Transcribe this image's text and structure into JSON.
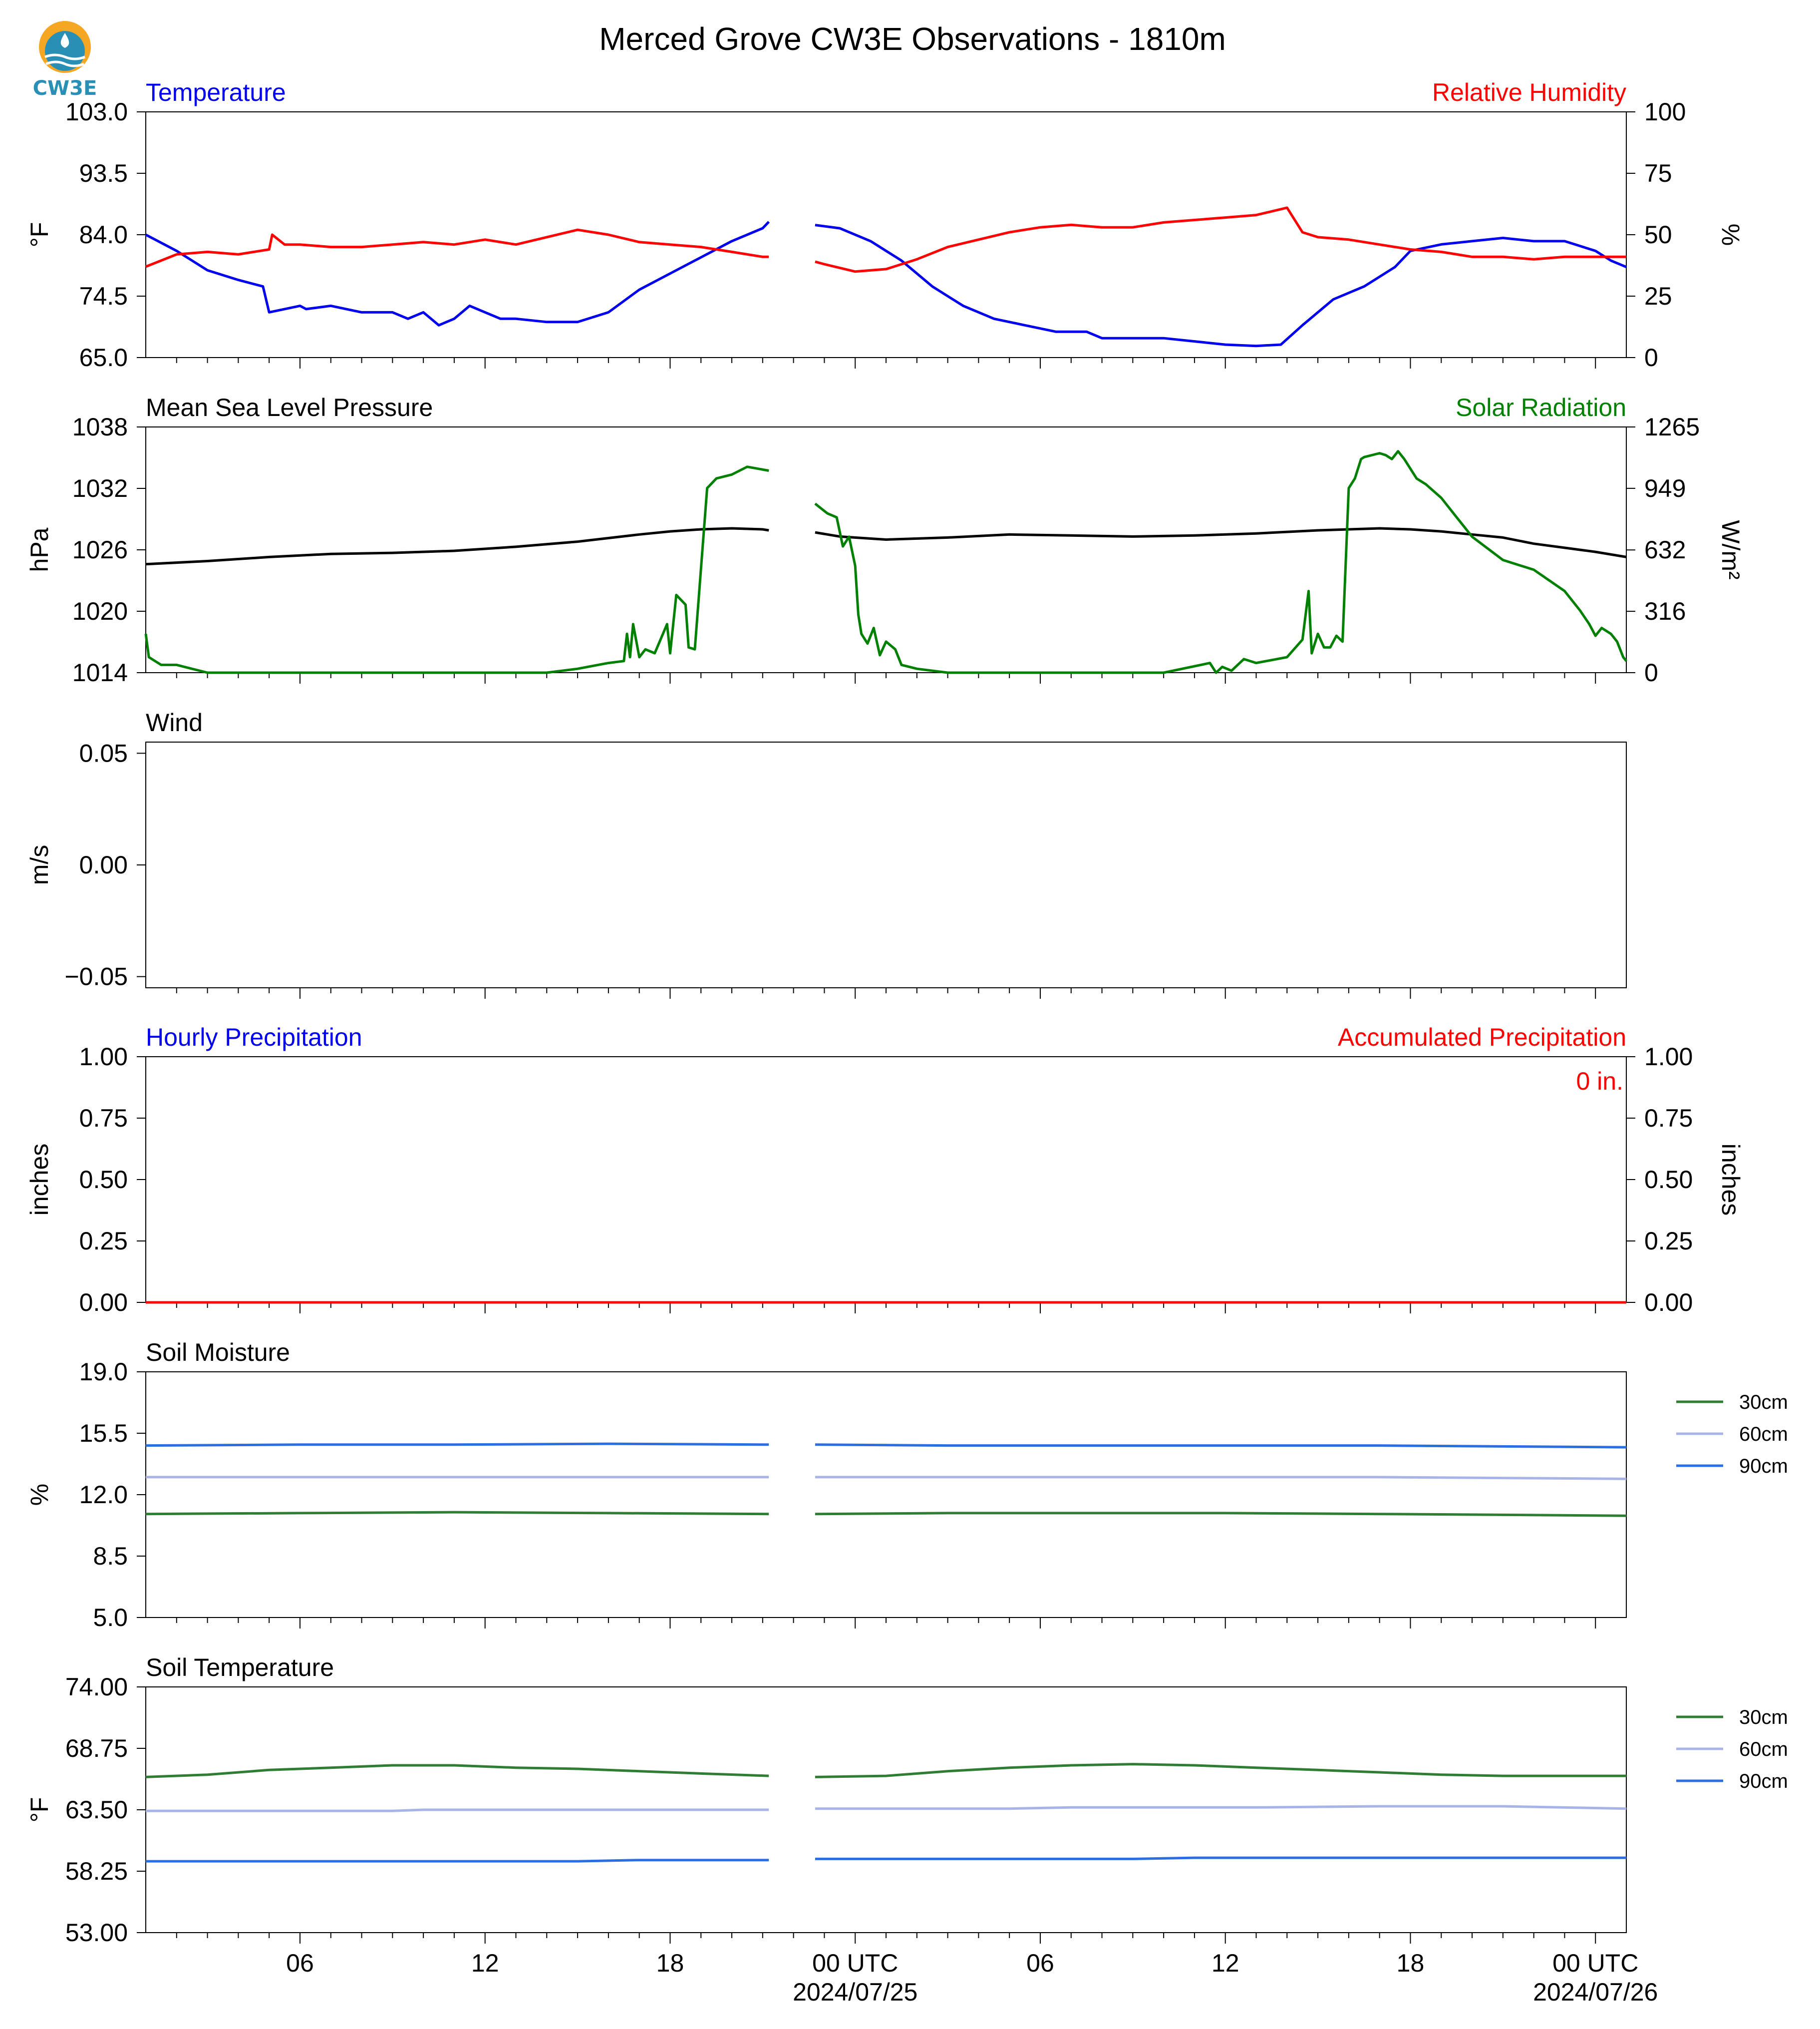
{
  "title": "Merced Grove CW3E Observations - 1810m",
  "logo_text": "CW3E",
  "colors": {
    "temperature": "#0000ee",
    "humidity": "#ff0000",
    "pressure": "#000000",
    "solar": "#008000",
    "soil_30": "#2e7d32",
    "soil_60": "#a8b4e8",
    "soil_90": "#2a6ee0",
    "logo_orange": "#f5a623",
    "logo_blue": "#2a8fb5"
  },
  "x_axis": {
    "start_hour": 0,
    "end_hour": 48,
    "tick_hours": [
      5,
      11,
      17,
      23,
      29,
      35,
      41,
      47
    ],
    "tick_labels": [
      "06",
      "12",
      "18",
      "00 UTC",
      "06",
      "12",
      "18",
      "00 UTC"
    ],
    "date_labels": [
      {
        "hour": 23,
        "text": "2024/07/25"
      },
      {
        "hour": 47,
        "text": "2024/07/26"
      }
    ],
    "minor_tick_step": 1
  },
  "chart_data": [
    {
      "type": "line",
      "title_left": "Temperature",
      "title_right": "Relative Humidity",
      "ylabel": "°F",
      "ylabel_right": "%",
      "ylim": [
        65.0,
        103.0
      ],
      "ylim_right": [
        0,
        100
      ],
      "yticks": [
        "65.0",
        "74.5",
        "84.0",
        "93.5",
        "103.0"
      ],
      "yticks_right": [
        "0",
        "25",
        "50",
        "75",
        "100"
      ],
      "series": [
        {
          "name": "Temperature",
          "axis": "left",
          "color_key": "temperature",
          "x": [
            0,
            1,
            2,
            3,
            3.8,
            4,
            5,
            5.2,
            6,
            7,
            8,
            8.5,
            9,
            9.5,
            10,
            10.5,
            11,
            11.5,
            12,
            13,
            14,
            15,
            16,
            17,
            18,
            19,
            20,
            20.2,
            null,
            21.7,
            22.5,
            23.5,
            24.5,
            25.5,
            26.5,
            27.5,
            28.5,
            29.5,
            30.5,
            31,
            32,
            33,
            34,
            35,
            36,
            36.8,
            37.5,
            38.5,
            39.5,
            40.5,
            41,
            42,
            43,
            44,
            45,
            46,
            47,
            47.5,
            48
          ],
          "y": [
            84.0,
            81.5,
            78.5,
            77,
            76,
            72,
            73,
            72.5,
            73,
            72,
            72,
            71,
            72,
            70,
            71,
            73,
            72,
            71,
            71,
            70.5,
            70.5,
            72,
            75.5,
            78,
            80.5,
            83,
            85,
            86,
            null,
            85.5,
            85,
            83,
            80,
            76,
            73,
            71,
            70,
            69,
            69,
            68,
            68,
            68,
            67.5,
            67,
            66.8,
            67,
            70,
            74,
            76,
            79,
            81.5,
            82.5,
            83,
            83.5,
            83,
            83,
            81.5,
            80,
            79
          ]
        },
        {
          "name": "Relative Humidity",
          "axis": "right",
          "color_key": "humidity",
          "x": [
            0,
            1,
            2,
            3,
            4,
            4.1,
            4.5,
            5,
            6,
            7,
            8,
            9,
            10,
            11,
            12,
            13,
            14,
            15,
            16,
            17,
            18,
            19,
            20,
            20.2,
            null,
            21.7,
            22,
            23,
            24,
            25,
            26,
            27,
            28,
            29,
            30,
            31,
            32,
            33,
            34,
            35,
            36,
            37,
            37.5,
            38,
            39,
            40,
            41,
            42,
            43,
            44,
            45,
            46,
            47,
            48
          ],
          "y": [
            37,
            42,
            43,
            42,
            44,
            50,
            46,
            46,
            45,
            45,
            46,
            47,
            46,
            48,
            46,
            49,
            52,
            50,
            47,
            46,
            45,
            43,
            41,
            41,
            null,
            39,
            38,
            35,
            36,
            40,
            45,
            48,
            51,
            53,
            54,
            53,
            53,
            55,
            56,
            57,
            58,
            61,
            51,
            49,
            48,
            46,
            44,
            43,
            41,
            41,
            40,
            41,
            41,
            41
          ]
        }
      ]
    },
    {
      "type": "line",
      "title_left": "Mean Sea Level Pressure",
      "title_right": "Solar Radiation",
      "ylabel": "hPa",
      "ylabel_right": "W/m²",
      "ylim": [
        1014,
        1038
      ],
      "ylim_right": [
        0,
        1265
      ],
      "yticks": [
        "1014",
        "1020",
        "1026",
        "1032",
        "1038"
      ],
      "yticks_right": [
        "0",
        "316",
        "632",
        "949",
        "1265"
      ],
      "yticks_right_values": [
        0,
        316,
        632,
        949,
        1265
      ],
      "series": [
        {
          "name": "Mean Sea Level Pressure",
          "axis": "left",
          "color_key": "pressure",
          "x": [
            0,
            2,
            4,
            6,
            8,
            10,
            12,
            14,
            16,
            17,
            18,
            19,
            20,
            20.2,
            null,
            21.7,
            22.5,
            24,
            26,
            28,
            30,
            32,
            34,
            36,
            38,
            40,
            41,
            42,
            43,
            44,
            45,
            46,
            47,
            48
          ],
          "y": [
            1024.6,
            1024.9,
            1025.3,
            1025.6,
            1025.7,
            1025.9,
            1026.3,
            1026.8,
            1027.5,
            1027.8,
            1028.0,
            1028.1,
            1028.0,
            1027.9,
            null,
            1027.7,
            1027.3,
            1027.0,
            1027.2,
            1027.5,
            1027.4,
            1027.3,
            1027.4,
            1027.6,
            1027.9,
            1028.1,
            1028.0,
            1027.8,
            1027.5,
            1027.2,
            1026.6,
            1026.2,
            1025.8,
            1025.3
          ]
        },
        {
          "name": "Solar Radiation",
          "axis": "right",
          "color_key": "solar",
          "x": [
            0,
            0.1,
            0.3,
            0.5,
            1,
            2,
            5,
            10,
            13,
            14,
            15,
            15.5,
            15.6,
            15.7,
            15.8,
            16.0,
            16.2,
            16.5,
            16.9,
            17.0,
            17.2,
            17.5,
            17.6,
            17.8,
            18.2,
            18.5,
            19,
            19.5,
            20.2,
            null,
            21.7,
            22.1,
            22.4,
            22.6,
            22.8,
            23.0,
            23.1,
            23.2,
            23.4,
            23.6,
            23.8,
            24.0,
            24.3,
            24.5,
            25,
            26,
            28,
            30,
            33,
            34.5,
            34.7,
            34.9,
            35.2,
            35.6,
            36,
            37,
            37.5,
            37.7,
            37.8,
            38.0,
            38.2,
            38.4,
            38.6,
            38.8,
            39.0,
            39.2,
            39.4,
            39.5,
            40,
            40.2,
            40.4,
            40.6,
            40.8,
            41.0,
            41.2,
            41.5,
            42.0,
            42.5,
            43,
            44,
            45,
            46,
            46.5,
            46.8,
            47.0,
            47.2,
            47.5,
            47.7,
            47.9,
            48
          ],
          "y": [
            200,
            80,
            60,
            40,
            40,
            0,
            0,
            0,
            0,
            20,
            50,
            60,
            200,
            80,
            250,
            80,
            120,
            100,
            250,
            100,
            400,
            350,
            130,
            120,
            950,
            1000,
            1020,
            1060,
            1040,
            null,
            870,
            820,
            800,
            650,
            700,
            550,
            300,
            200,
            150,
            230,
            90,
            160,
            120,
            40,
            20,
            0,
            0,
            0,
            0,
            50,
            0,
            30,
            10,
            70,
            50,
            80,
            170,
            420,
            100,
            200,
            130,
            130,
            190,
            160,
            950,
            1000,
            1100,
            1110,
            1130,
            1120,
            1100,
            1140,
            1100,
            1050,
            1000,
            970,
            900,
            800,
            700,
            580,
            530,
            420,
            320,
            250,
            190,
            230,
            200,
            160,
            80,
            60
          ]
        }
      ]
    },
    {
      "type": "line",
      "title_left": "Wind",
      "ylabel": "m/s",
      "ylim": [
        -0.055,
        0.055
      ],
      "yticks": [
        "0.05",
        "0.00",
        "−0.05"
      ],
      "yticks_values": [
        0.05,
        0.0,
        -0.05
      ],
      "series": []
    },
    {
      "type": "bar",
      "title_left": "Hourly Precipitation",
      "title_right": "Accumulated Precipitation",
      "annotation": "0 in.",
      "ylabel": "inches",
      "ylabel_right": "inches",
      "ylim": [
        0.0,
        1.0
      ],
      "ylim_right": [
        0.0,
        1.0
      ],
      "yticks": [
        "0.00",
        "0.25",
        "0.50",
        "0.75",
        "1.00"
      ],
      "yticks_right": [
        "0.00",
        "0.25",
        "0.50",
        "0.75",
        "1.00"
      ],
      "series": [
        {
          "name": "Accumulated Precipitation",
          "axis": "right",
          "color_key": "humidity",
          "x": [
            0,
            48
          ],
          "y": [
            0.0,
            0.0
          ]
        }
      ]
    },
    {
      "type": "line",
      "title_left": "Soil Moisture",
      "ylabel": "%",
      "ylim": [
        5.0,
        19.0
      ],
      "yticks": [
        "5.0",
        "8.5",
        "12.0",
        "15.5",
        "19.0"
      ],
      "legend": [
        "30cm",
        "60cm",
        "90cm"
      ],
      "series": [
        {
          "name": "30cm",
          "color_key": "soil_30",
          "x": [
            0,
            5,
            10,
            15,
            20.2,
            null,
            21.7,
            26,
            30,
            35,
            40,
            44,
            48
          ],
          "y": [
            10.9,
            10.95,
            11.0,
            10.95,
            10.9,
            null,
            10.9,
            10.95,
            10.95,
            10.95,
            10.9,
            10.85,
            10.8
          ]
        },
        {
          "name": "60cm",
          "color_key": "soil_60",
          "x": [
            0,
            5,
            10,
            15,
            20.2,
            null,
            21.7,
            26,
            30,
            35,
            40,
            44,
            48
          ],
          "y": [
            13.0,
            13.0,
            13.0,
            13.0,
            13.0,
            null,
            13.0,
            13.0,
            13.0,
            13.0,
            13.0,
            12.95,
            12.9
          ]
        },
        {
          "name": "90cm",
          "color_key": "soil_90",
          "x": [
            0,
            5,
            10,
            15,
            20.2,
            null,
            21.7,
            26,
            30,
            35,
            40,
            44,
            48
          ],
          "y": [
            14.8,
            14.85,
            14.85,
            14.9,
            14.85,
            null,
            14.85,
            14.8,
            14.8,
            14.8,
            14.8,
            14.75,
            14.7
          ]
        }
      ]
    },
    {
      "type": "line",
      "title_left": "Soil Temperature",
      "ylabel": "°F",
      "ylim": [
        53.0,
        74.0
      ],
      "yticks": [
        "53.00",
        "58.25",
        "63.50",
        "68.75",
        "74.00"
      ],
      "legend": [
        "30cm",
        "60cm",
        "90cm"
      ],
      "series": [
        {
          "name": "30cm",
          "color_key": "soil_30",
          "x": [
            0,
            2,
            4,
            6,
            8,
            10,
            12,
            14,
            16,
            18,
            20.2,
            null,
            21.7,
            24,
            26,
            28,
            30,
            32,
            34,
            36,
            38,
            40,
            42,
            44,
            48
          ],
          "y": [
            66.3,
            66.5,
            66.9,
            67.1,
            67.3,
            67.3,
            67.1,
            67.0,
            66.8,
            66.6,
            66.4,
            null,
            66.3,
            66.4,
            66.8,
            67.1,
            67.3,
            67.4,
            67.3,
            67.1,
            66.9,
            66.7,
            66.5,
            66.4,
            66.4
          ]
        },
        {
          "name": "60cm",
          "color_key": "soil_60",
          "x": [
            0,
            8,
            9,
            12,
            16,
            20.2,
            null,
            21.7,
            28,
            30,
            36,
            40,
            42,
            44,
            48
          ],
          "y": [
            63.4,
            63.4,
            63.5,
            63.5,
            63.5,
            63.5,
            null,
            63.6,
            63.6,
            63.7,
            63.7,
            63.8,
            63.8,
            63.8,
            63.6
          ]
        },
        {
          "name": "90cm",
          "color_key": "soil_90",
          "x": [
            0,
            14,
            16,
            18,
            20.2,
            null,
            21.7,
            32,
            34,
            36,
            40,
            44,
            48
          ],
          "y": [
            59.1,
            59.1,
            59.2,
            59.2,
            59.2,
            null,
            59.3,
            59.3,
            59.4,
            59.4,
            59.4,
            59.4,
            59.4
          ]
        }
      ]
    }
  ]
}
